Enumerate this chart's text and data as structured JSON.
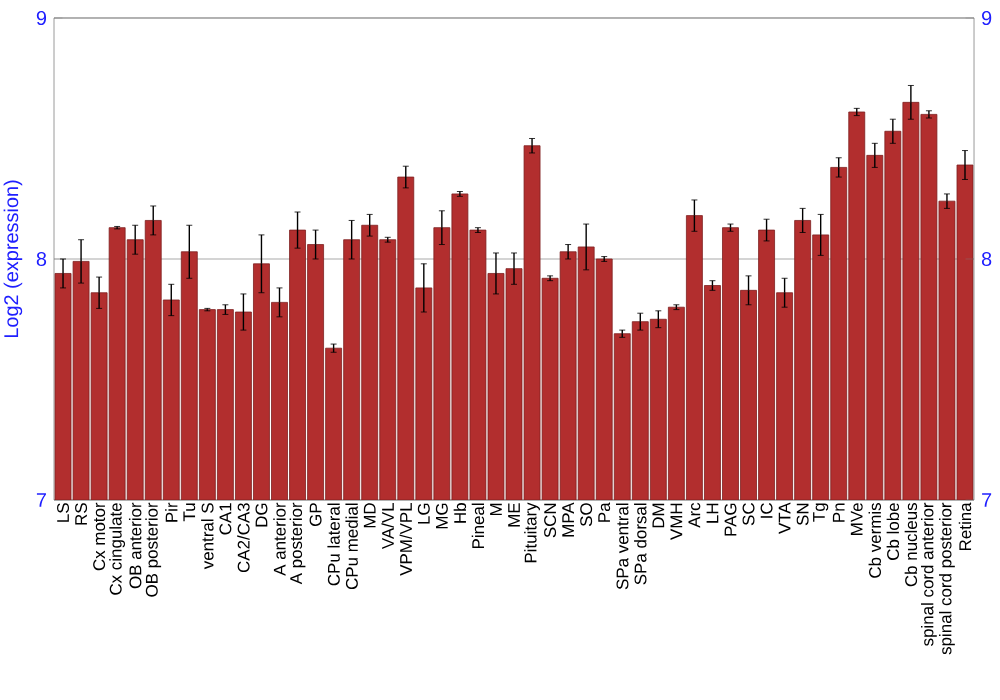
{
  "chart_data": {
    "type": "bar",
    "ylabel": "Log2 (expression)",
    "categories": [
      "LS",
      "RS",
      "Cx motor",
      "Cx cingulate",
      "OB anterior",
      "OB posterior",
      "Pir",
      "Tu",
      "ventral S",
      "CA1",
      "CA2/CA3",
      "DG",
      "A anterior",
      "A posterior",
      "GP",
      "CPu lateral",
      "CPu medial",
      "MD",
      "VA/VL",
      "VPM/VPL",
      "LG",
      "MG",
      "Hb",
      "Pineal",
      "M",
      "ME",
      "Pituitary",
      "SCN",
      "MPA",
      "SO",
      "Pa",
      "SPa ventral",
      "SPa dorsal",
      "DM",
      "VMH",
      "Arc",
      "LH",
      "PAG",
      "SC",
      "IC",
      "VTA",
      "SN",
      "Tg",
      "Pn",
      "MVe",
      "Cb vermis",
      "Cb lobe",
      "Cb nucleus",
      "spinal cord anterior",
      "spinal cord posterior",
      "Retina"
    ],
    "values": [
      7.94,
      7.99,
      7.86,
      8.13,
      8.08,
      8.16,
      7.83,
      8.03,
      7.79,
      7.79,
      7.78,
      7.98,
      7.82,
      8.12,
      8.06,
      7.63,
      8.08,
      8.14,
      8.08,
      8.34,
      7.88,
      8.13,
      8.27,
      8.12,
      7.94,
      7.96,
      8.47,
      7.92,
      8.03,
      8.05,
      8.0,
      7.69,
      7.74,
      7.75,
      7.8,
      8.18,
      7.89,
      8.13,
      7.87,
      8.12,
      7.86,
      8.16,
      8.1,
      8.38,
      8.61,
      8.43,
      8.53,
      8.65,
      8.6,
      8.24,
      8.39
    ],
    "errors": [
      0.06,
      0.09,
      0.065,
      0.005,
      0.06,
      0.06,
      0.065,
      0.11,
      0.005,
      0.02,
      0.075,
      0.12,
      0.06,
      0.075,
      0.06,
      0.017,
      0.08,
      0.045,
      0.01,
      0.045,
      0.1,
      0.07,
      0.01,
      0.01,
      0.085,
      0.065,
      0.03,
      0.01,
      0.03,
      0.095,
      0.01,
      0.015,
      0.035,
      0.035,
      0.01,
      0.065,
      0.02,
      0.015,
      0.06,
      0.045,
      0.06,
      0.05,
      0.085,
      0.04,
      0.015,
      0.05,
      0.05,
      0.07,
      0.015,
      0.03,
      0.06
    ],
    "color": "#b22e2e",
    "ylim": [
      7,
      9
    ],
    "yticks": [
      7,
      8,
      9
    ],
    "y2lim": [
      7,
      9
    ],
    "y2ticks": [
      7,
      8,
      9
    ],
    "grid": "y"
  }
}
